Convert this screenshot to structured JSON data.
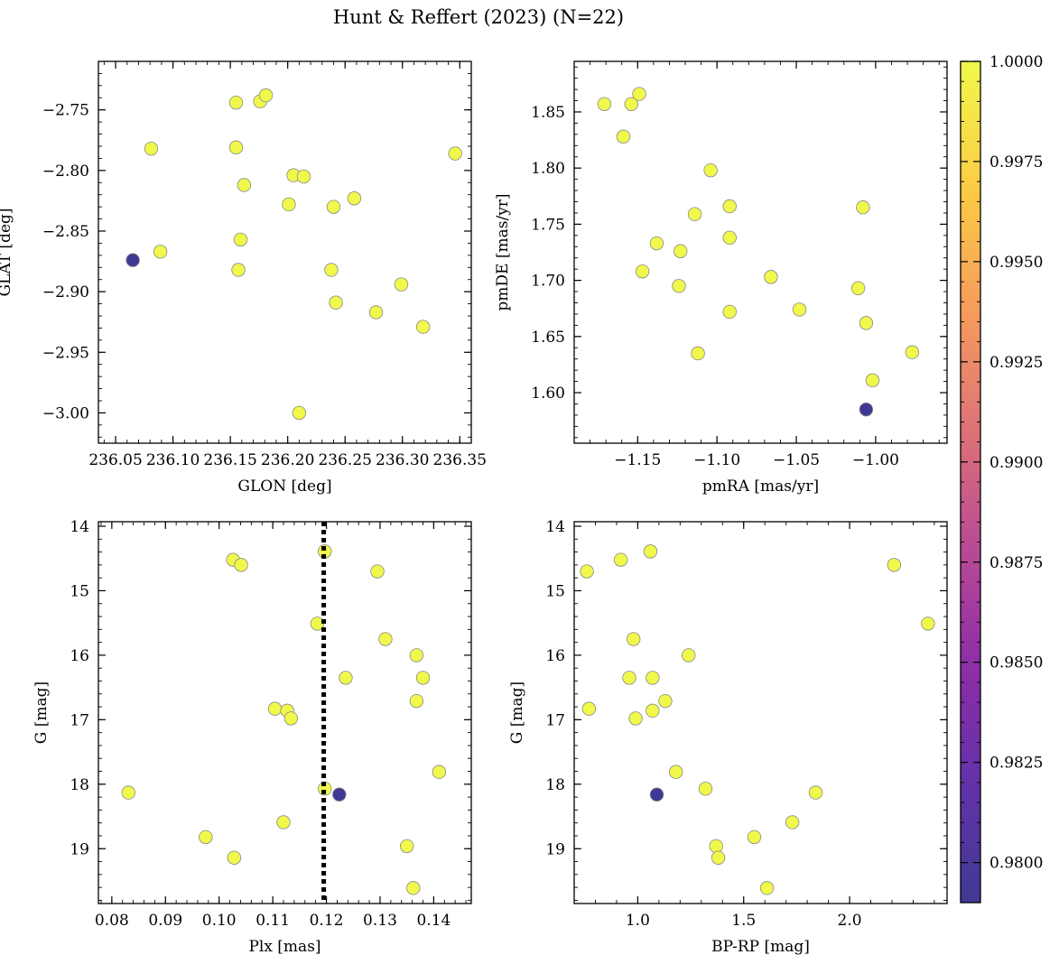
{
  "title": "Hunt & Reffert (2023) (N=22)",
  "colors": {
    "member": "#eef64a",
    "outlier": "#3f3993"
  },
  "chart_data": [
    {
      "id": "glon-glat",
      "type": "scatter",
      "xlabel": "GLON [deg]",
      "ylabel": "GLAT [deg]",
      "xlim": [
        236.035,
        236.36
      ],
      "ylim": [
        -3.025,
        -2.71
      ],
      "xticks": [
        236.05,
        236.1,
        236.15,
        236.2,
        236.25,
        236.3,
        236.35
      ],
      "xtick_labels": [
        "236.05",
        "236.10",
        "236.15",
        "236.20",
        "236.25",
        "236.30",
        "236.35"
      ],
      "yticks": [
        -2.75,
        -2.8,
        -2.85,
        -2.9,
        -2.95,
        -3.0
      ],
      "ytick_labels": [
        "−2.75",
        "−2.80",
        "−2.85",
        "−2.90",
        "−2.95",
        "−3.00"
      ],
      "points": [
        {
          "x": 236.065,
          "y": -2.874,
          "p": 0.979
        },
        {
          "x": 236.081,
          "y": -2.782,
          "p": 1.0
        },
        {
          "x": 236.089,
          "y": -2.867,
          "p": 1.0
        },
        {
          "x": 236.155,
          "y": -2.744,
          "p": 1.0
        },
        {
          "x": 236.155,
          "y": -2.781,
          "p": 1.0
        },
        {
          "x": 236.157,
          "y": -2.882,
          "p": 1.0
        },
        {
          "x": 236.159,
          "y": -2.857,
          "p": 1.0
        },
        {
          "x": 236.162,
          "y": -2.812,
          "p": 1.0
        },
        {
          "x": 236.176,
          "y": -2.743,
          "p": 1.0
        },
        {
          "x": 236.181,
          "y": -2.738,
          "p": 1.0
        },
        {
          "x": 236.201,
          "y": -2.828,
          "p": 1.0
        },
        {
          "x": 236.205,
          "y": -2.804,
          "p": 1.0
        },
        {
          "x": 236.214,
          "y": -2.805,
          "p": 1.0
        },
        {
          "x": 236.21,
          "y": -3.0,
          "p": 1.0
        },
        {
          "x": 236.238,
          "y": -2.882,
          "p": 1.0
        },
        {
          "x": 236.24,
          "y": -2.83,
          "p": 1.0
        },
        {
          "x": 236.242,
          "y": -2.909,
          "p": 1.0
        },
        {
          "x": 236.258,
          "y": -2.823,
          "p": 1.0
        },
        {
          "x": 236.277,
          "y": -2.917,
          "p": 1.0
        },
        {
          "x": 236.299,
          "y": -2.894,
          "p": 1.0
        },
        {
          "x": 236.318,
          "y": -2.929,
          "p": 1.0
        },
        {
          "x": 236.346,
          "y": -2.786,
          "p": 1.0
        }
      ]
    },
    {
      "id": "pmra-pmde",
      "type": "scatter",
      "xlabel": "pmRA [mas/yr]",
      "ylabel": "pmDE [mas/yr]",
      "xlim": [
        -1.19,
        -0.955
      ],
      "ylim": [
        1.555,
        1.895
      ],
      "xticks": [
        -1.15,
        -1.1,
        -1.05,
        -1.0
      ],
      "xtick_labels": [
        "−1.15",
        "−1.10",
        "−1.05",
        "−1.00"
      ],
      "yticks": [
        1.6,
        1.65,
        1.7,
        1.75,
        1.8,
        1.85
      ],
      "ytick_labels": [
        "1.60",
        "1.65",
        "1.70",
        "1.75",
        "1.80",
        "1.85"
      ],
      "points": [
        {
          "x": -1.171,
          "y": 1.857,
          "p": 1.0
        },
        {
          "x": -1.159,
          "y": 1.828,
          "p": 1.0
        },
        {
          "x": -1.154,
          "y": 1.857,
          "p": 1.0
        },
        {
          "x": -1.149,
          "y": 1.866,
          "p": 1.0
        },
        {
          "x": -1.147,
          "y": 1.708,
          "p": 1.0
        },
        {
          "x": -1.138,
          "y": 1.733,
          "p": 1.0
        },
        {
          "x": -1.124,
          "y": 1.695,
          "p": 1.0
        },
        {
          "x": -1.123,
          "y": 1.726,
          "p": 1.0
        },
        {
          "x": -1.114,
          "y": 1.759,
          "p": 1.0
        },
        {
          "x": -1.112,
          "y": 1.635,
          "p": 1.0
        },
        {
          "x": -1.104,
          "y": 1.798,
          "p": 1.0
        },
        {
          "x": -1.092,
          "y": 1.766,
          "p": 1.0
        },
        {
          "x": -1.092,
          "y": 1.738,
          "p": 1.0
        },
        {
          "x": -1.092,
          "y": 1.672,
          "p": 1.0
        },
        {
          "x": -1.066,
          "y": 1.703,
          "p": 1.0
        },
        {
          "x": -1.048,
          "y": 1.674,
          "p": 1.0
        },
        {
          "x": -1.011,
          "y": 1.693,
          "p": 1.0
        },
        {
          "x": -1.008,
          "y": 1.765,
          "p": 1.0
        },
        {
          "x": -1.006,
          "y": 1.662,
          "p": 1.0
        },
        {
          "x": -1.006,
          "y": 1.585,
          "p": 0.979
        },
        {
          "x": -1.002,
          "y": 1.611,
          "p": 1.0
        },
        {
          "x": -0.977,
          "y": 1.636,
          "p": 1.0
        }
      ]
    },
    {
      "id": "plx-g",
      "type": "scatter",
      "xlabel": "Plx [mas]",
      "ylabel": "G [mag]",
      "xlim": [
        0.0775,
        0.147
      ],
      "ylim": [
        19.85,
        13.93
      ],
      "xticks": [
        0.08,
        0.09,
        0.1,
        0.11,
        0.12,
        0.13,
        0.14
      ],
      "xtick_labels": [
        "0.08",
        "0.09",
        "0.10",
        "0.11",
        "0.12",
        "0.13",
        "0.14"
      ],
      "yticks": [
        14,
        15,
        16,
        17,
        18,
        19
      ],
      "ytick_labels": [
        "14",
        "15",
        "16",
        "17",
        "18",
        "19"
      ],
      "vline": 0.1195,
      "points": [
        {
          "x": 0.0831,
          "y": 18.13,
          "p": 1.0
        },
        {
          "x": 0.0975,
          "y": 18.82,
          "p": 1.0
        },
        {
          "x": 0.1026,
          "y": 14.52,
          "p": 1.0
        },
        {
          "x": 0.1028,
          "y": 19.14,
          "p": 1.0
        },
        {
          "x": 0.1041,
          "y": 14.6,
          "p": 1.0
        },
        {
          "x": 0.1104,
          "y": 16.83,
          "p": 1.0
        },
        {
          "x": 0.112,
          "y": 18.59,
          "p": 1.0
        },
        {
          "x": 0.1127,
          "y": 16.86,
          "p": 1.0
        },
        {
          "x": 0.1134,
          "y": 16.98,
          "p": 1.0
        },
        {
          "x": 0.1183,
          "y": 15.51,
          "p": 1.0
        },
        {
          "x": 0.1197,
          "y": 14.39,
          "p": 1.0
        },
        {
          "x": 0.1197,
          "y": 18.07,
          "p": 1.0
        },
        {
          "x": 0.1224,
          "y": 18.16,
          "p": 0.979
        },
        {
          "x": 0.1236,
          "y": 16.35,
          "p": 1.0
        },
        {
          "x": 0.1295,
          "y": 14.7,
          "p": 1.0
        },
        {
          "x": 0.131,
          "y": 15.75,
          "p": 1.0
        },
        {
          "x": 0.135,
          "y": 18.96,
          "p": 1.0
        },
        {
          "x": 0.1362,
          "y": 19.61,
          "p": 1.0
        },
        {
          "x": 0.1368,
          "y": 16.0,
          "p": 1.0
        },
        {
          "x": 0.1368,
          "y": 16.71,
          "p": 1.0
        },
        {
          "x": 0.138,
          "y": 16.35,
          "p": 1.0
        },
        {
          "x": 0.141,
          "y": 17.81,
          "p": 1.0
        }
      ]
    },
    {
      "id": "bprp-g",
      "type": "scatter",
      "xlabel": "BP-RP [mag]",
      "ylabel": "G [mag]",
      "xlim": [
        0.7,
        2.46
      ],
      "ylim": [
        19.85,
        13.93
      ],
      "xticks": [
        1.0,
        1.5,
        2.0
      ],
      "xtick_labels": [
        "1.0",
        "1.5",
        "2.0"
      ],
      "yticks": [
        14,
        15,
        16,
        17,
        18,
        19
      ],
      "ytick_labels": [
        "14",
        "15",
        "16",
        "17",
        "18",
        "19"
      ],
      "points": [
        {
          "x": 0.76,
          "y": 14.7,
          "p": 1.0
        },
        {
          "x": 0.77,
          "y": 16.83,
          "p": 1.0
        },
        {
          "x": 0.92,
          "y": 14.52,
          "p": 1.0
        },
        {
          "x": 0.96,
          "y": 16.35,
          "p": 1.0
        },
        {
          "x": 0.98,
          "y": 15.75,
          "p": 1.0
        },
        {
          "x": 0.99,
          "y": 16.98,
          "p": 1.0
        },
        {
          "x": 1.06,
          "y": 14.39,
          "p": 1.0
        },
        {
          "x": 1.07,
          "y": 16.35,
          "p": 1.0
        },
        {
          "x": 1.07,
          "y": 16.86,
          "p": 1.0
        },
        {
          "x": 1.09,
          "y": 18.16,
          "p": 0.979
        },
        {
          "x": 1.13,
          "y": 16.71,
          "p": 1.0
        },
        {
          "x": 1.18,
          "y": 17.81,
          "p": 1.0
        },
        {
          "x": 1.24,
          "y": 16.0,
          "p": 1.0
        },
        {
          "x": 1.32,
          "y": 18.07,
          "p": 1.0
        },
        {
          "x": 1.37,
          "y": 18.96,
          "p": 1.0
        },
        {
          "x": 1.38,
          "y": 19.14,
          "p": 1.0
        },
        {
          "x": 1.55,
          "y": 18.82,
          "p": 1.0
        },
        {
          "x": 1.61,
          "y": 19.61,
          "p": 1.0
        },
        {
          "x": 1.73,
          "y": 18.59,
          "p": 1.0
        },
        {
          "x": 1.84,
          "y": 18.13,
          "p": 1.0
        },
        {
          "x": 2.21,
          "y": 14.6,
          "p": 1.0
        },
        {
          "x": 2.37,
          "y": 15.51,
          "p": 1.0
        }
      ]
    }
  ],
  "colorbar": {
    "range": [
      0.979,
      1.0
    ],
    "ticks": [
      0.98,
      0.9825,
      0.985,
      0.9875,
      0.99,
      0.9925,
      0.995,
      0.9975,
      1.0
    ],
    "tick_labels": [
      "0.9800",
      "0.9825",
      "0.9850",
      "0.9875",
      "0.9900",
      "0.9925",
      "0.9950",
      "0.9975",
      "1.0000"
    ],
    "colormap": "plasma"
  }
}
